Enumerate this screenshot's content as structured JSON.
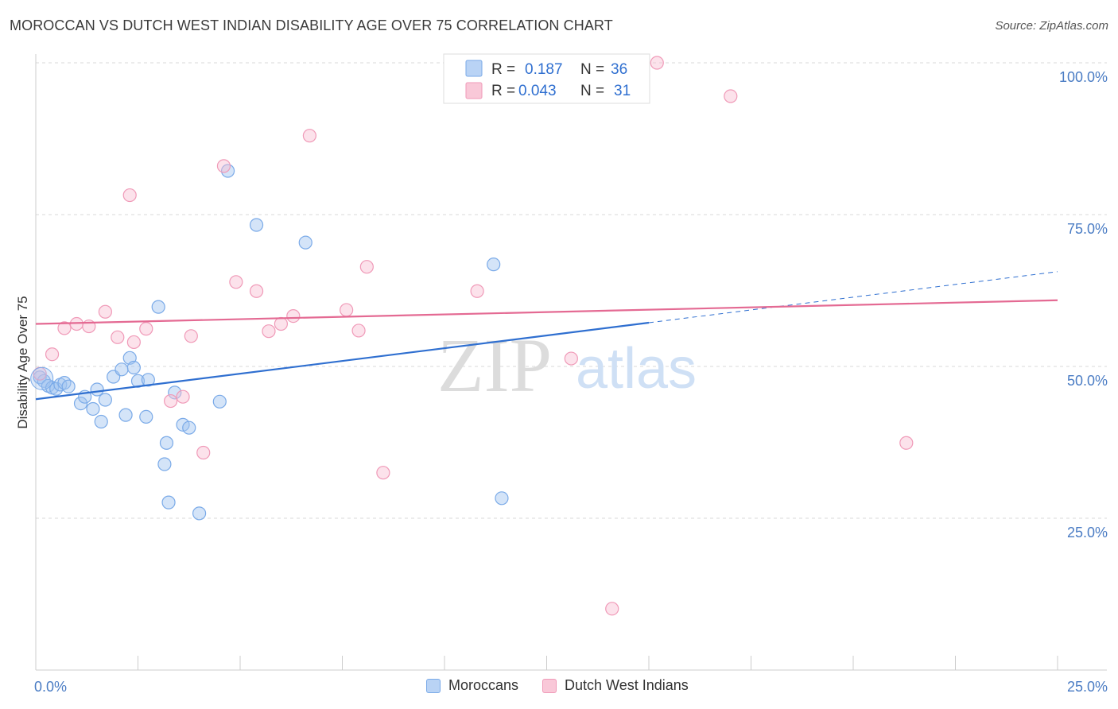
{
  "header": {
    "title": "MOROCCAN VS DUTCH WEST INDIAN DISABILITY AGE OVER 75 CORRELATION CHART",
    "source": "Source: ZipAtlas.com"
  },
  "watermark": {
    "zip": "ZIP",
    "atlas": "atlas"
  },
  "legend": {
    "r_label": "R =",
    "n_label": "N =",
    "entries": [
      {
        "r": "0.187",
        "n": "36"
      },
      {
        "r": "0.043",
        "n": "31"
      }
    ]
  },
  "chart_data": {
    "type": "scatter",
    "title": "MOROCCAN VS DUTCH WEST INDIAN DISABILITY AGE OVER 75 CORRELATION CHART",
    "xlabel": "",
    "ylabel": "Disability Age Over 75",
    "xlim": [
      0,
      25
    ],
    "ylim": [
      0,
      102
    ],
    "x_ticks": [
      0,
      25
    ],
    "x_tick_labels": [
      "0.0%",
      "25.0%"
    ],
    "y_ticks": [
      25,
      50,
      75,
      100
    ],
    "y_tick_labels": [
      "25.0%",
      "50.0%",
      "75.0%",
      "100.0%"
    ],
    "grid": true,
    "legend_position": "top-center",
    "colors": {
      "moroccans": "#7aaae8",
      "dutch_west_indians": "#f09ab8",
      "moroccans_line": "#2f6fd0",
      "dutch_line": "#e46a93"
    },
    "series": [
      {
        "name": "Moroccans",
        "r": 0.187,
        "n": 36,
        "trend": {
          "x": [
            0,
            15
          ],
          "y": [
            44.6,
            57.2
          ],
          "dashed_extension_to": [
            25,
            65.6
          ]
        },
        "points": [
          [
            0.1,
            48.2
          ],
          [
            0.2,
            47.6
          ],
          [
            0.3,
            46.8
          ],
          [
            0.4,
            46.5
          ],
          [
            0.5,
            46.3
          ],
          [
            0.6,
            47.0
          ],
          [
            0.7,
            47.3
          ],
          [
            0.8,
            46.7
          ],
          [
            1.1,
            43.9
          ],
          [
            1.2,
            45.0
          ],
          [
            1.4,
            43.0
          ],
          [
            1.5,
            46.2
          ],
          [
            1.6,
            40.9
          ],
          [
            1.7,
            44.5
          ],
          [
            1.9,
            48.3
          ],
          [
            2.1,
            49.5
          ],
          [
            2.2,
            42.0
          ],
          [
            2.3,
            51.4
          ],
          [
            2.4,
            49.8
          ],
          [
            2.5,
            47.6
          ],
          [
            2.7,
            41.7
          ],
          [
            2.75,
            47.8
          ],
          [
            3.0,
            59.8
          ],
          [
            3.2,
            37.4
          ],
          [
            3.15,
            33.9
          ],
          [
            3.25,
            27.6
          ],
          [
            3.4,
            45.7
          ],
          [
            3.6,
            40.4
          ],
          [
            3.75,
            39.9
          ],
          [
            4.0,
            25.8
          ],
          [
            4.5,
            44.2
          ],
          [
            4.7,
            82.2
          ],
          [
            5.4,
            73.3
          ],
          [
            6.6,
            70.4
          ],
          [
            11.2,
            66.8
          ],
          [
            11.4,
            28.3
          ]
        ]
      },
      {
        "name": "Dutch West Indians",
        "r": 0.043,
        "n": 31,
        "trend": {
          "x": [
            0,
            25
          ],
          "y": [
            57.0,
            60.9
          ]
        },
        "points": [
          [
            0.1,
            48.8
          ],
          [
            0.4,
            52.0
          ],
          [
            0.7,
            56.3
          ],
          [
            1.0,
            57.0
          ],
          [
            1.3,
            56.6
          ],
          [
            1.7,
            59.0
          ],
          [
            2.0,
            54.8
          ],
          [
            2.3,
            78.2
          ],
          [
            2.4,
            54.0
          ],
          [
            2.7,
            56.2
          ],
          [
            3.3,
            44.3
          ],
          [
            3.6,
            45.0
          ],
          [
            3.8,
            55.0
          ],
          [
            4.1,
            35.8
          ],
          [
            4.6,
            83.0
          ],
          [
            4.9,
            63.9
          ],
          [
            5.4,
            62.4
          ],
          [
            5.7,
            55.8
          ],
          [
            6.0,
            57.0
          ],
          [
            6.3,
            58.3
          ],
          [
            6.7,
            88.0
          ],
          [
            7.6,
            59.3
          ],
          [
            7.9,
            55.9
          ],
          [
            8.1,
            66.4
          ],
          [
            8.5,
            32.5
          ],
          [
            10.8,
            62.4
          ],
          [
            13.1,
            51.3
          ],
          [
            14.1,
            10.1
          ],
          [
            15.2,
            100.0
          ],
          [
            17.0,
            94.5
          ],
          [
            21.3,
            37.4
          ]
        ]
      }
    ]
  }
}
